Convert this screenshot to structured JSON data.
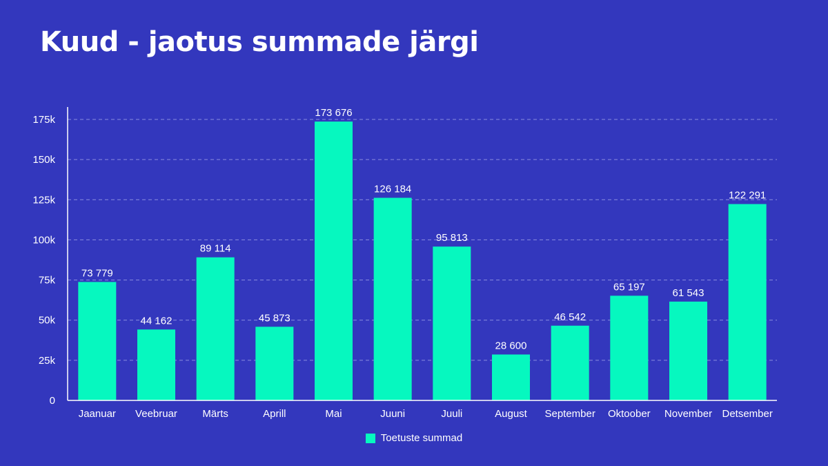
{
  "title": "Kuud - jaotus summade järgi",
  "colors": {
    "background": "#3337bd",
    "bar": "#06f8bf",
    "grid": "#8a8de0",
    "axis": "#ffffff",
    "text": "#ffffff"
  },
  "chart_data": {
    "type": "bar",
    "title": "Kuud - jaotus summade järgi",
    "xlabel": "",
    "ylabel": "",
    "categories": [
      "Jaanuar",
      "Veebruar",
      "Märts",
      "Aprill",
      "Mai",
      "Juuni",
      "Juuli",
      "August",
      "September",
      "Oktoober",
      "November",
      "Detsember"
    ],
    "series": [
      {
        "name": "Toetuste summad",
        "values": [
          73779,
          44162,
          89114,
          45873,
          173676,
          126184,
          95813,
          28600,
          46542,
          65197,
          61543,
          122291
        ],
        "labels": [
          "73 779",
          "44 162",
          "89 114",
          "45 873",
          "173 676",
          "126 184",
          "95 813",
          "28 600",
          "46 542",
          "65 197",
          "61 543",
          "122 291"
        ]
      }
    ],
    "ylim": [
      0,
      175000
    ],
    "yticks": [
      0,
      25000,
      50000,
      75000,
      100000,
      125000,
      150000,
      175000
    ],
    "ytick_labels": [
      "0",
      "25k",
      "50k",
      "75k",
      "100k",
      "125k",
      "150k",
      "175k"
    ],
    "grid": true,
    "grid_style": "dashed",
    "legend_position": "bottom-center"
  }
}
